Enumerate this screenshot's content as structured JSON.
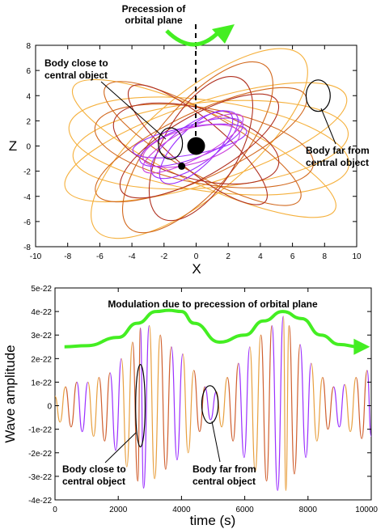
{
  "chart_data": [
    {
      "type": "line",
      "xlabel": "X",
      "ylabel": "Z",
      "xlim": [
        -10,
        10
      ],
      "ylim": [
        -8,
        8
      ],
      "x_ticks": [
        "-10",
        "-8",
        "-6",
        "-4",
        "-2",
        "0",
        "2",
        "4",
        "6",
        "8",
        "10"
      ],
      "y_ticks": [
        "-8",
        "-6",
        "-4",
        "-2",
        "0",
        "2",
        "4",
        "6",
        "8"
      ],
      "grid": false,
      "annotations": {
        "precession": [
          "Precession of",
          "orbital plane"
        ],
        "near": [
          "Body close to",
          "central object"
        ],
        "far": [
          "Body far from",
          "central object"
        ]
      },
      "central_object": {
        "x": 0,
        "y": 0
      },
      "orbiting_body": {
        "x": -0.9,
        "y": -1.6
      },
      "series": [
        {
          "color": "#f5b03c",
          "ellipses": [
            {
              "cx": 0.6,
              "cy": 0.3,
              "a": 9.2,
              "b": 3.2,
              "angle_deg": -18
            },
            {
              "cx": 0.8,
              "cy": 0.0,
              "a": 8.8,
              "b": 3.6,
              "angle_deg": 8
            },
            {
              "cx": 0.2,
              "cy": 0.2,
              "a": 8.4,
              "b": 4.0,
              "angle_deg": -40
            },
            {
              "cx": 0.5,
              "cy": -0.2,
              "a": 9.0,
              "b": 2.8,
              "angle_deg": 25
            },
            {
              "cx": 0.9,
              "cy": 0.1,
              "a": 8.6,
              "b": 3.4,
              "angle_deg": -5
            }
          ]
        },
        {
          "color": "#d2691e",
          "ellipses": [
            {
              "cx": 0.3,
              "cy": 0.1,
              "a": 7.2,
              "b": 2.6,
              "angle_deg": -25
            },
            {
              "cx": 0.5,
              "cy": 0.0,
              "a": 6.9,
              "b": 3.0,
              "angle_deg": 10
            },
            {
              "cx": 0.1,
              "cy": -0.1,
              "a": 6.6,
              "b": 3.3,
              "angle_deg": -50
            },
            {
              "cx": 0.4,
              "cy": 0.2,
              "a": 7.0,
              "b": 2.4,
              "angle_deg": 30
            }
          ]
        },
        {
          "color": "#b03020",
          "ellipses": [
            {
              "cx": 0.2,
              "cy": 0.0,
              "a": 5.6,
              "b": 2.4,
              "angle_deg": -30
            },
            {
              "cx": 0.0,
              "cy": 0.2,
              "a": 5.3,
              "b": 2.8,
              "angle_deg": 15
            },
            {
              "cx": 0.3,
              "cy": -0.2,
              "a": 5.0,
              "b": 3.0,
              "angle_deg": -60
            },
            {
              "cx": 0.1,
              "cy": 0.1,
              "a": 5.5,
              "b": 2.0,
              "angle_deg": 40
            }
          ]
        },
        {
          "color": "#9b30ff",
          "ellipses": [
            {
              "cx": -0.3,
              "cy": 0.3,
              "a": 3.4,
              "b": 1.3,
              "angle_deg": -20
            },
            {
              "cx": -0.1,
              "cy": 0.1,
              "a": 3.2,
              "b": 1.6,
              "angle_deg": -35
            },
            {
              "cx": -0.4,
              "cy": 0.4,
              "a": 3.6,
              "b": 1.1,
              "angle_deg": -10
            },
            {
              "cx": 0.0,
              "cy": -0.1,
              "a": 3.0,
              "b": 1.5,
              "angle_deg": -45
            }
          ]
        },
        {
          "color": "#cc44dd",
          "ellipses": [
            {
              "cx": -0.2,
              "cy": 0.2,
              "a": 3.5,
              "b": 1.2,
              "angle_deg": -28
            },
            {
              "cx": -0.3,
              "cy": 0.0,
              "a": 3.1,
              "b": 1.4,
              "angle_deg": -15
            }
          ]
        }
      ],
      "highlight_circles": [
        {
          "x": -1.6,
          "y": 0.2,
          "rx": 0.75,
          "ry": 1.25
        },
        {
          "x": 7.6,
          "y": 4.0,
          "rx": 0.75,
          "ry": 1.25
        }
      ]
    },
    {
      "type": "line",
      "xlabel": "time (s)",
      "ylabel": "Wave amplitude",
      "xlim": [
        0,
        10000
      ],
      "ylim": [
        -4e-22,
        5e-22
      ],
      "x_ticks": [
        "0",
        "2000",
        "4000",
        "6000",
        "8000",
        "10000"
      ],
      "y_ticks": [
        "-4e-22",
        "-3e-22",
        "-2e-22",
        "-1e-22",
        "0",
        "1e-22",
        "2e-22",
        "3e-22",
        "4e-22",
        "5e-22"
      ],
      "grid": false,
      "annotations": {
        "modulation": "Modulation due to precession of orbital plane",
        "near": [
          "Body close to",
          "central object"
        ],
        "far": [
          "Body far from",
          "central object"
        ]
      },
      "envelope": {
        "color": "#44ee22",
        "x": [
          300,
          1000,
          2000,
          2600,
          3200,
          3600,
          4000,
          4400,
          5200,
          6000,
          6600,
          7200,
          7800,
          8400,
          9000,
          9600
        ],
        "y": [
          2.5e-22,
          2.55e-22,
          2.9e-22,
          3.5e-22,
          4e-22,
          4.05e-22,
          4e-22,
          3.5e-22,
          2.7e-22,
          3e-22,
          3.6e-22,
          4e-22,
          3.7e-22,
          3e-22,
          2.6e-22,
          2.5e-22
        ]
      },
      "wave": {
        "colors": [
          "#e8a040",
          "#d06030",
          "#9b30ff"
        ],
        "x": [
          0,
          160,
          330,
          510,
          690,
          860,
          1040,
          1220,
          1390,
          1570,
          1740,
          1920,
          2100,
          2270,
          2450,
          2620,
          2700,
          2800,
          2980,
          3150,
          3330,
          3500,
          3680,
          3860,
          4040,
          4210,
          4390,
          4570,
          4740,
          4920,
          5100,
          5270,
          5450,
          5630,
          5800,
          5980,
          6160,
          6330,
          6510,
          6690,
          6860,
          7040,
          7220,
          7300,
          7400,
          7570,
          7750,
          7930,
          8100,
          8280,
          8460,
          8630,
          8810,
          8990,
          9160,
          9340,
          9520,
          9700,
          9870,
          10000
        ],
        "y": [
          4e-23,
          -7e-23,
          8e-23,
          -9e-23,
          1e-22,
          -1.1e-22,
          1e-22,
          -1.3e-22,
          1.2e-22,
          -1.5e-22,
          1.4e-22,
          -1.9e-22,
          2e-22,
          -2.6e-22,
          2.7e-22,
          -3.2e-22,
          3.3e-22,
          -3.5e-22,
          3.4e-22,
          -3.1e-22,
          3e-22,
          -2.7e-22,
          2.5e-22,
          -2.3e-22,
          2.2e-22,
          -2e-22,
          1.5e-22,
          -1.1e-22,
          8e-23,
          -6e-23,
          6e-23,
          -9e-23,
          1.2e-22,
          -1.5e-22,
          1.8e-22,
          -2.2e-22,
          2.5e-22,
          -2.8e-22,
          3e-22,
          -3.2e-22,
          3.4e-22,
          -3.6e-22,
          3.8e-22,
          -3.6e-22,
          3.4e-22,
          -2.9e-22,
          2.6e-22,
          -2.2e-22,
          1.8e-22,
          -1.5e-22,
          1.2e-22,
          -1e-22,
          8e-23,
          -9e-23,
          9e-23,
          -1.1e-22,
          1.2e-22,
          -1.4e-22,
          1.5e-22,
          -1.3e-22
        ]
      },
      "highlight_circles": [
        {
          "x": 2700,
          "y": 0.0,
          "rx": 150,
          "ry": 1.75e-22
        },
        {
          "x": 4900,
          "y": 5e-24,
          "rx": 260,
          "ry": 8e-23
        }
      ]
    }
  ]
}
